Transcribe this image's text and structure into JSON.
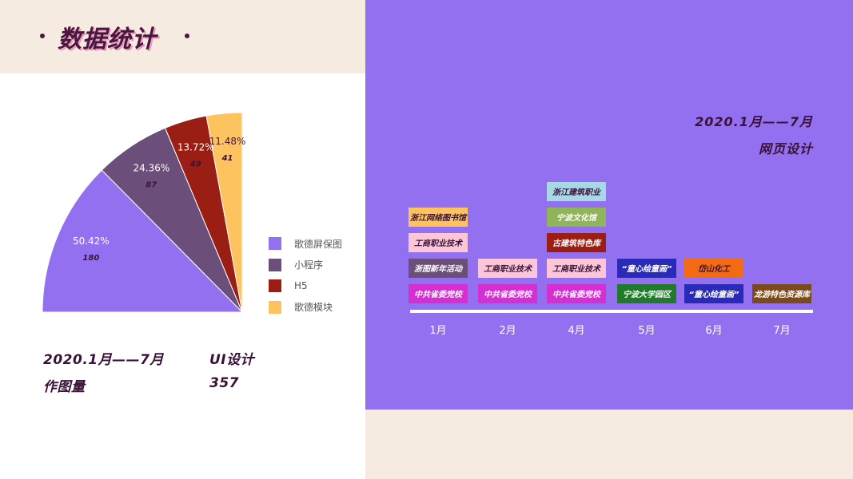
{
  "header": {
    "title": "数据统计"
  },
  "chart_data": [
    {
      "type": "pie",
      "slices": [
        {
          "label": "歌德屏保图",
          "percent": "50.42%",
          "value": 180,
          "color": "#9370f0"
        },
        {
          "label": "小程序",
          "percent": "24.36%",
          "value": 87,
          "color": "#6b4f7a"
        },
        {
          "label": "H5",
          "percent": "13.72%",
          "value": 49,
          "color": "#9b1e14"
        },
        {
          "label": "歌德模块",
          "percent": "11.48%",
          "value": 41,
          "color": "#fcc35e"
        }
      ]
    },
    {
      "type": "table",
      "months": [
        "1月",
        "2月",
        "4月",
        "5月",
        "6月",
        "7月"
      ],
      "columns": [
        {
          "month": "1月",
          "items": [
            {
              "label": "中共省委党校",
              "color": "#d42fd0",
              "text_color": "#ffffff"
            },
            {
              "label": "浙图新年活动",
              "color": "#6b4f7a",
              "text_color": "#ffffff"
            },
            {
              "label": "工商职业技术",
              "color": "#fbc6d8",
              "text_color": "#3a1238"
            },
            {
              "label": "浙江网络图书馆",
              "color": "#fcc35e",
              "text_color": "#3a1238"
            }
          ]
        },
        {
          "month": "2月",
          "items": [
            {
              "label": "中共省委党校",
              "color": "#d42fd0",
              "text_color": "#ffffff"
            },
            {
              "label": "工商职业技术",
              "color": "#fbc6d8",
              "text_color": "#3a1238"
            }
          ]
        },
        {
          "month": "4月",
          "items": [
            {
              "label": "中共省委党校",
              "color": "#d42fd0",
              "text_color": "#ffffff"
            },
            {
              "label": "工商职业技术",
              "color": "#fbc6d8",
              "text_color": "#3a1238"
            },
            {
              "label": "古建筑特色库",
              "color": "#9b1e14",
              "text_color": "#ffffff"
            },
            {
              "label": "宁波文化馆",
              "color": "#8fb45a",
              "text_color": "#ffffff"
            },
            {
              "label": "浙江建筑职业",
              "color": "#a8d8e8",
              "text_color": "#3a1238"
            }
          ]
        },
        {
          "month": "5月",
          "items": [
            {
              "label": "宁波大学园区",
              "color": "#1f7a2a",
              "text_color": "#ffffff"
            },
            {
              "label": "“童心绘童画”",
              "color": "#2a2ab8",
              "text_color": "#ffffff"
            }
          ]
        },
        {
          "month": "6月",
          "items": [
            {
              "label": "“童心绘童画”",
              "color": "#2a2ab8",
              "text_color": "#ffffff"
            },
            {
              "label": "岱山化工",
              "color": "#f26a12",
              "text_color": "#3a1238"
            }
          ]
        },
        {
          "month": "7月",
          "items": [
            {
              "label": "龙游特色资源库",
              "color": "#7a4a1a",
              "text_color": "#ffffff"
            }
          ]
        }
      ]
    }
  ],
  "left_stats": {
    "period": "2020.1月——7月",
    "category": "UI设计",
    "count_label": "作图量",
    "count_value": "357"
  },
  "right_panel": {
    "period": "2020.1月——7月",
    "category": "网页设计"
  }
}
